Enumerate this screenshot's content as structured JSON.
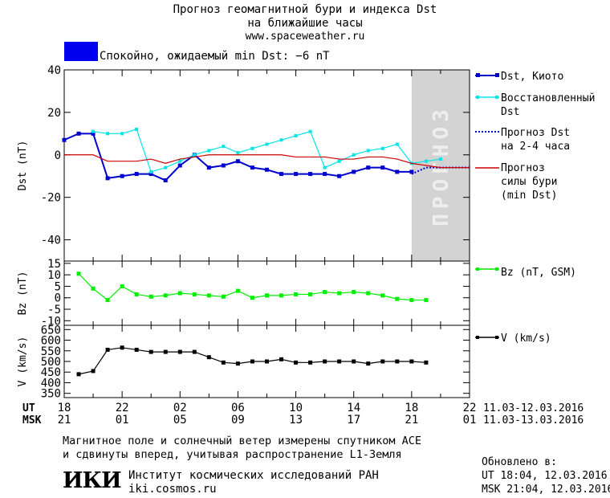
{
  "header": {
    "title_line1": "Прогноз геомагнитной бури и индекса Dst",
    "title_line2": "на ближайшие часы",
    "site": "www.spaceweather.ru"
  },
  "status": {
    "text": "Спокойно, ожидаемый min Dst: −6 nT",
    "color": "#0000ee"
  },
  "forecast_band_label": "ПРОГНОЗ",
  "legend": {
    "dst_kyoto": "Dst, Киото",
    "dst_restored_1": "Восстановленный",
    "dst_restored_2": "Dst",
    "dst_forecast_1": "Прогноз Dst",
    "dst_forecast_2": "на 2-4 часа",
    "storm_1": "Прогноз",
    "storm_2": "силы бури",
    "storm_3": "(min Dst)",
    "bz": "Bz (nT, GSM)",
    "v": "V (km/s)"
  },
  "time_axis": {
    "ut_label": "UT",
    "msk_label": "MSK",
    "ut_ticks": [
      "18",
      "22",
      "02",
      "06",
      "10",
      "14",
      "18",
      "22"
    ],
    "msk_ticks": [
      "21",
      "01",
      "05",
      "09",
      "13",
      "17",
      "21",
      "01"
    ],
    "ut_range": "11.03-12.03.2016",
    "msk_range": "11.03-13.03.2016"
  },
  "notes": {
    "line1": "Магнитное поле и солнечный ветер измерены спутником ACE",
    "line2": "и сдвинуты вперед, учитывая распространение L1-Земля"
  },
  "footer": {
    "logo": "ИКИ",
    "institute": "Институт космических исследований РАН",
    "site": "iki.cosmos.ru",
    "updated_label": "Обновлено в:",
    "updated_ut": "UT  18:04, 12.03.2016",
    "updated_msk": "MSK 21:04, 12.03.2016"
  },
  "chart_data": [
    {
      "type": "line",
      "ylabel": "Dst (nT)",
      "ylim": [
        -50,
        40
      ],
      "yticks": [
        -40,
        -20,
        0,
        20,
        40
      ],
      "xlim": [
        0,
        28
      ],
      "forecast_region": [
        24,
        28
      ],
      "colors": {
        "kyoto": "#0000cc",
        "restored": "#00e5e5",
        "forecast": "#0000cc",
        "storm": "#cc0000"
      },
      "series": [
        {
          "name": "Dst, Киото",
          "x": [
            0,
            1,
            2,
            3,
            4,
            5,
            6,
            7,
            8,
            9,
            10,
            11,
            12,
            13,
            14,
            15,
            16,
            17,
            18,
            19,
            20,
            21,
            22,
            23,
            24
          ],
          "values": [
            7,
            10,
            10,
            -11,
            -10,
            -9,
            -9,
            -12,
            -5,
            0,
            -6,
            -5,
            -3,
            -6,
            -7,
            -9,
            -9,
            -9,
            -9,
            -10,
            -8,
            -6,
            -6,
            -8,
            -8
          ]
        },
        {
          "name": "Восстановленный Dst",
          "x": [
            2,
            3,
            4,
            5,
            6,
            7,
            8,
            9,
            10,
            11,
            12,
            13,
            14,
            15,
            16,
            17,
            18,
            19,
            20,
            21,
            22,
            23,
            24,
            25,
            26
          ],
          "values": [
            11,
            10,
            10,
            12,
            -8,
            -6,
            -3,
            0,
            2,
            4,
            1,
            3,
            5,
            7,
            9,
            11,
            -6,
            -3,
            0,
            2,
            3,
            5,
            -4,
            -3,
            -2
          ]
        },
        {
          "name": "Прогноз Dst на 2-4 часа",
          "x": [
            24,
            25,
            26,
            27,
            28
          ],
          "values": [
            -9,
            -6,
            -6,
            -6,
            -6
          ]
        },
        {
          "name": "Прогноз силы бури (min Dst)",
          "x": [
            0,
            2,
            3,
            4,
            5,
            6,
            7,
            8,
            9,
            10,
            11,
            12,
            13,
            14,
            15,
            16,
            17,
            18,
            19,
            20,
            21,
            22,
            23,
            24,
            25,
            26,
            27,
            28
          ],
          "values": [
            0,
            0,
            -3,
            -3,
            -3,
            -2,
            -4,
            -2,
            -1,
            0,
            0,
            0,
            0,
            0,
            0,
            -1,
            -1,
            -1,
            -2,
            -2,
            -1,
            -1,
            -2,
            -4,
            -5,
            -6,
            -6,
            -6
          ]
        }
      ]
    },
    {
      "type": "line",
      "ylabel": "Bz (nT)",
      "ylim": [
        -12,
        16
      ],
      "yticks": [
        -10,
        -5,
        0,
        5,
        10,
        15
      ],
      "xlim": [
        0,
        28
      ],
      "colors": {
        "bz": "#00ee00"
      },
      "series": [
        {
          "name": "Bz (nT, GSM)",
          "x": [
            1,
            2,
            3,
            4,
            5,
            6,
            7,
            8,
            9,
            10,
            11,
            12,
            13,
            14,
            15,
            16,
            17,
            18,
            19,
            20,
            21,
            22,
            23,
            24,
            25
          ],
          "values": [
            10.5,
            4,
            -1,
            5,
            1.5,
            0.5,
            1,
            2,
            1.5,
            1,
            0.5,
            3,
            0,
            1,
            1,
            1.5,
            1.5,
            2.5,
            2,
            2.5,
            2,
            1,
            -0.5,
            -1,
            -1
          ]
        }
      ]
    },
    {
      "type": "line",
      "ylabel": "V (km/s)",
      "ylim": [
        330,
        670
      ],
      "yticks": [
        350,
        400,
        450,
        500,
        550,
        600,
        650
      ],
      "xlim": [
        0,
        28
      ],
      "colors": {
        "v": "#000000"
      },
      "series": [
        {
          "name": "V (km/s)",
          "x": [
            1,
            2,
            3,
            4,
            5,
            6,
            7,
            8,
            9,
            10,
            11,
            12,
            13,
            14,
            15,
            16,
            17,
            18,
            19,
            20,
            21,
            22,
            23,
            24,
            25
          ],
          "values": [
            440,
            455,
            555,
            565,
            555,
            545,
            545,
            545,
            545,
            520,
            495,
            490,
            500,
            500,
            510,
            495,
            495,
            500,
            500,
            500,
            490,
            500,
            500,
            500,
            495
          ]
        }
      ]
    }
  ]
}
